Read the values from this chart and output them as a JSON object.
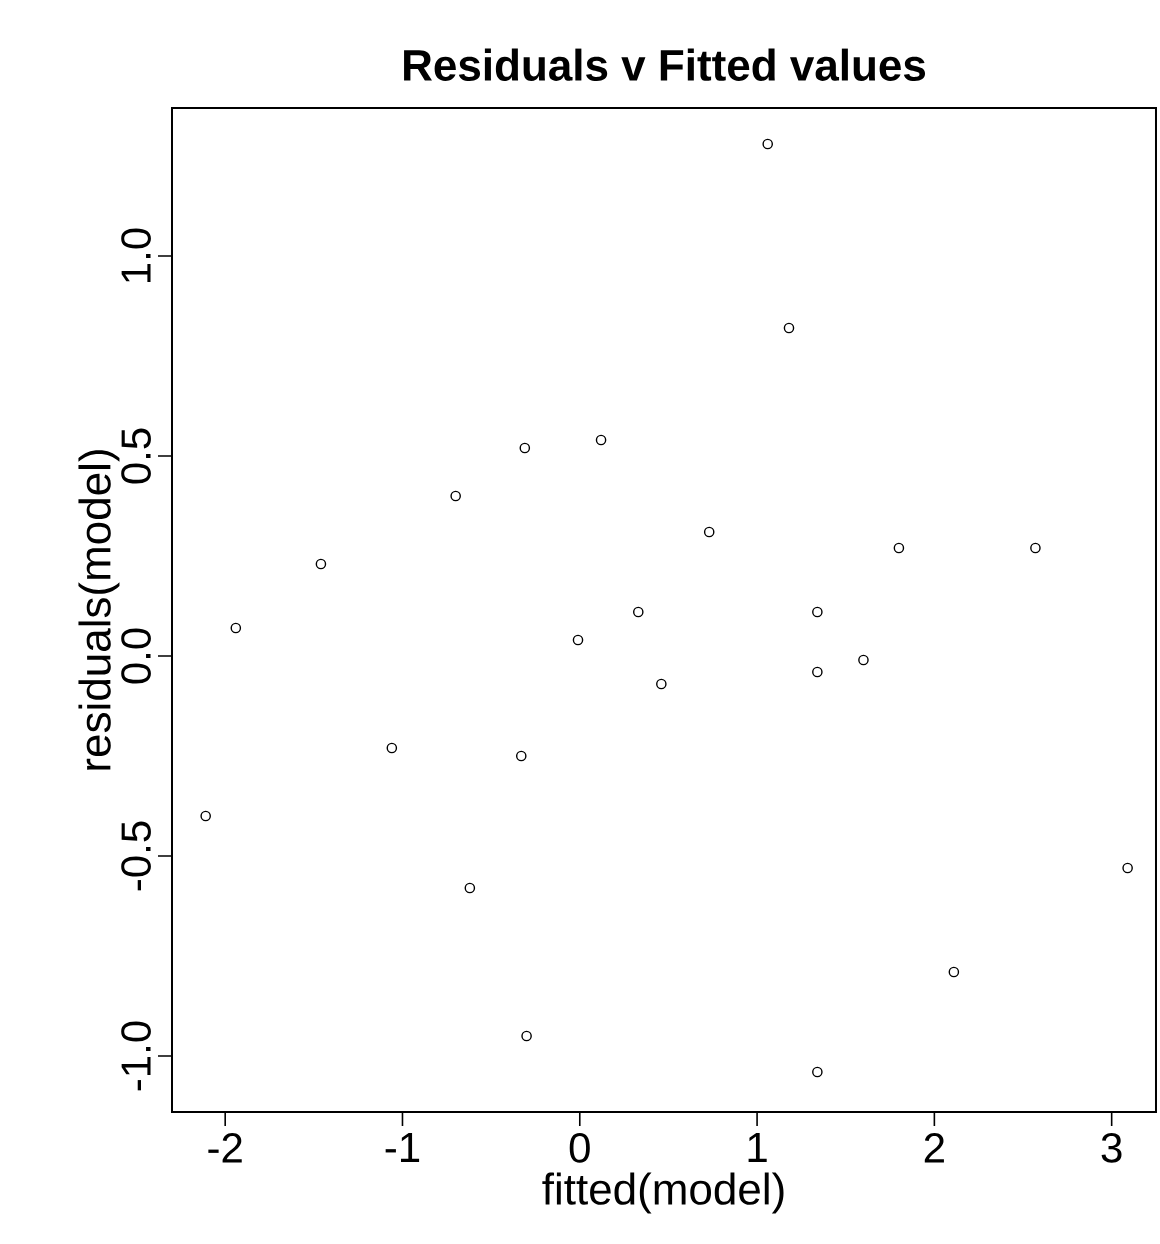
{
  "chart_data": {
    "type": "scatter",
    "title": "Residuals v Fitted values",
    "xlabel": "fitted(model)",
    "ylabel": "residuals(model)",
    "x": [
      1.06,
      1.18,
      -0.31,
      0.12,
      -0.7,
      -1.46,
      0.73,
      1.8,
      2.57,
      0.33,
      1.34,
      -1.94,
      -0.01,
      1.34,
      1.6,
      0.46,
      -1.06,
      -0.33,
      -2.11,
      -0.62,
      3.09,
      2.11,
      -0.3,
      1.34
    ],
    "values": [
      1.28,
      0.82,
      0.52,
      0.54,
      0.4,
      0.23,
      0.31,
      0.27,
      0.27,
      0.11,
      0.11,
      0.07,
      0.04,
      -0.04,
      -0.01,
      -0.07,
      -0.23,
      -0.25,
      -0.4,
      -0.58,
      -0.53,
      -0.79,
      -0.95,
      -1.04
    ],
    "color": "#000000",
    "marker": "circle",
    "xlim": [
      -2.3,
      3.25
    ],
    "ylim": [
      -1.14,
      1.37
    ],
    "xticks": [
      -2,
      -1,
      0,
      1,
      2,
      3
    ],
    "yticks": [
      {
        "value": -1,
        "label": "-1.0"
      },
      {
        "value": -0.5,
        "label": "-0.5"
      },
      {
        "value": 0,
        "label": "0.0"
      },
      {
        "value": 0.5,
        "label": "0.5"
      },
      {
        "value": 1,
        "label": "1.0"
      }
    ]
  }
}
